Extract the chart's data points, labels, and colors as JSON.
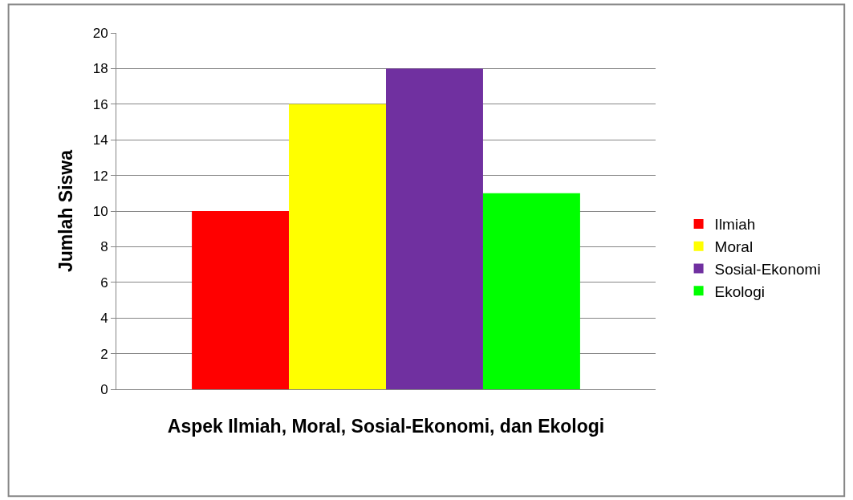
{
  "chart_data": {
    "type": "bar",
    "xlabel": "Aspek Ilmiah, Moral, Sosial-Ekonomi, dan Ekologi",
    "ylabel": "Jumlah Siswa",
    "categories": [
      null
    ],
    "series": [
      {
        "name": "Ilmiah",
        "color": "#ff0000",
        "values": [
          10
        ]
      },
      {
        "name": "Moral",
        "color": "#ffff00",
        "values": [
          16
        ]
      },
      {
        "name": "Sosial-Ekonomi",
        "color": "#7030a0",
        "values": [
          18
        ]
      },
      {
        "name": "Ekologi",
        "color": "#00ff00",
        "values": [
          11
        ]
      }
    ],
    "ylim": [
      0,
      20
    ],
    "yticks": [
      0,
      2,
      4,
      6,
      8,
      10,
      12,
      14,
      16,
      18,
      20
    ],
    "grid": "y",
    "legend": "right"
  }
}
